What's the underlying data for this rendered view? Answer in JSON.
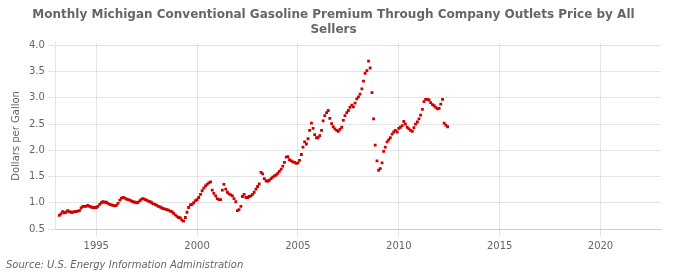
{
  "chart_data": {
    "type": "scatter",
    "title": "Monthly Michigan Conventional Gasoline Premium Through Company Outlets Price by All\nSellers",
    "ylabel": "Dollars per Gallon",
    "annotation": "Source: U.S. Energy Information Administration",
    "color": "#cc0000",
    "marker": "square",
    "grid": true,
    "xlim": [
      1993.0,
      2023.0
    ],
    "ylim": [
      0.5,
      4.05
    ],
    "xticks": [
      1995,
      2000,
      2005,
      2010,
      2015,
      2020
    ],
    "yticks": [
      0.5,
      {
        "value": 1.0,
        "label": "1.0"
      },
      1.5,
      {
        "value": 2.0,
        "label": "2.0"
      },
      2.5,
      {
        "value": 3.0,
        "label": "3.0"
      },
      3.5,
      {
        "value": 4.0,
        "label": "4.0"
      }
    ],
    "x": [
      1993.17,
      1993.25,
      1993.33,
      1993.42,
      1993.5,
      1993.58,
      1993.67,
      1993.75,
      1993.83,
      1993.92,
      1994.0,
      1994.08,
      1994.17,
      1994.25,
      1994.33,
      1994.42,
      1994.5,
      1994.58,
      1994.67,
      1994.75,
      1994.83,
      1994.92,
      1995.0,
      1995.08,
      1995.17,
      1995.25,
      1995.33,
      1995.42,
      1995.5,
      1995.58,
      1995.67,
      1995.75,
      1995.83,
      1995.92,
      1996.0,
      1996.08,
      1996.17,
      1996.25,
      1996.33,
      1996.42,
      1996.5,
      1996.58,
      1996.67,
      1996.75,
      1996.83,
      1996.92,
      1997.0,
      1997.08,
      1997.17,
      1997.25,
      1997.33,
      1997.42,
      1997.5,
      1997.58,
      1997.67,
      1997.75,
      1997.83,
      1997.92,
      1998.0,
      1998.08,
      1998.17,
      1998.25,
      1998.33,
      1998.42,
      1998.5,
      1998.58,
      1998.67,
      1998.75,
      1998.83,
      1998.92,
      1999.0,
      1999.08,
      1999.17,
      1999.25,
      1999.33,
      1999.42,
      1999.5,
      1999.58,
      1999.67,
      1999.75,
      1999.83,
      1999.92,
      2000.0,
      2000.08,
      2000.17,
      2000.25,
      2000.33,
      2000.42,
      2000.5,
      2000.58,
      2000.67,
      2000.75,
      2000.83,
      2000.92,
      2001.0,
      2001.08,
      2001.17,
      2001.25,
      2001.33,
      2001.42,
      2001.5,
      2001.58,
      2001.67,
      2001.75,
      2001.83,
      2001.92,
      2002.0,
      2002.08,
      2002.17,
      2002.25,
      2002.33,
      2002.42,
      2002.5,
      2002.58,
      2002.67,
      2002.75,
      2002.83,
      2002.92,
      2003.0,
      2003.08,
      2003.17,
      2003.25,
      2003.33,
      2003.42,
      2003.5,
      2003.58,
      2003.67,
      2003.75,
      2003.83,
      2003.92,
      2004.0,
      2004.08,
      2004.17,
      2004.25,
      2004.33,
      2004.42,
      2004.5,
      2004.58,
      2004.67,
      2004.75,
      2004.83,
      2004.92,
      2005.0,
      2005.08,
      2005.17,
      2005.25,
      2005.33,
      2005.42,
      2005.5,
      2005.58,
      2005.67,
      2005.75,
      2005.83,
      2005.92,
      2006.0,
      2006.08,
      2006.17,
      2006.25,
      2006.33,
      2006.42,
      2006.5,
      2006.58,
      2006.67,
      2006.75,
      2006.83,
      2006.92,
      2007.0,
      2007.08,
      2007.17,
      2007.25,
      2007.33,
      2007.42,
      2007.5,
      2007.58,
      2007.67,
      2007.75,
      2007.83,
      2007.92,
      2008.0,
      2008.08,
      2008.17,
      2008.25,
      2008.33,
      2008.42,
      2008.5,
      2008.58,
      2008.67,
      2008.75,
      2008.83,
      2008.92,
      2009.0,
      2009.08,
      2009.17,
      2009.25,
      2009.33,
      2009.42,
      2009.5,
      2009.58,
      2009.67,
      2009.75,
      2009.83,
      2009.92,
      2010.0,
      2010.08,
      2010.17,
      2010.25,
      2010.33,
      2010.42,
      2010.5,
      2010.58,
      2010.67,
      2010.75,
      2010.83,
      2010.92,
      2011.0,
      2011.08,
      2011.17,
      2011.25,
      2011.33,
      2011.42,
      2011.5,
      2011.58,
      2011.67,
      2011.75,
      2011.83,
      2011.92,
      2012.0,
      2012.08,
      2012.17,
      2012.25,
      2012.33,
      2012.42
    ],
    "values": [
      0.76,
      0.79,
      0.83,
      0.81,
      0.82,
      0.85,
      0.83,
      0.82,
      0.82,
      0.83,
      0.83,
      0.84,
      0.85,
      0.9,
      0.93,
      0.93,
      0.93,
      0.95,
      0.93,
      0.92,
      0.91,
      0.91,
      0.91,
      0.93,
      0.97,
      1.0,
      1.02,
      1.01,
      1.01,
      0.99,
      0.97,
      0.96,
      0.95,
      0.94,
      0.95,
      0.99,
      1.05,
      1.09,
      1.1,
      1.09,
      1.07,
      1.06,
      1.05,
      1.03,
      1.02,
      1.01,
      1.0,
      1.01,
      1.04,
      1.07,
      1.08,
      1.06,
      1.05,
      1.03,
      1.02,
      1.0,
      0.98,
      0.97,
      0.95,
      0.93,
      0.92,
      0.9,
      0.89,
      0.88,
      0.87,
      0.86,
      0.84,
      0.83,
      0.8,
      0.77,
      0.74,
      0.72,
      0.71,
      0.67,
      0.65,
      0.72,
      0.82,
      0.91,
      0.96,
      0.97,
      1.0,
      1.04,
      1.06,
      1.1,
      1.16,
      1.23,
      1.28,
      1.32,
      1.35,
      1.38,
      1.4,
      1.24,
      1.18,
      1.13,
      1.08,
      1.06,
      1.06,
      1.24,
      1.35,
      1.26,
      1.2,
      1.17,
      1.15,
      1.13,
      1.08,
      1.02,
      0.85,
      0.87,
      0.93,
      1.12,
      1.16,
      1.1,
      1.1,
      1.12,
      1.13,
      1.16,
      1.2,
      1.26,
      1.31,
      1.36,
      1.58,
      1.55,
      1.46,
      1.42,
      1.41,
      1.43,
      1.46,
      1.49,
      1.51,
      1.53,
      1.56,
      1.6,
      1.64,
      1.7,
      1.77,
      1.87,
      1.88,
      1.82,
      1.8,
      1.78,
      1.77,
      1.75,
      1.76,
      1.81,
      1.92,
      2.06,
      2.16,
      2.12,
      2.22,
      2.38,
      2.52,
      2.42,
      2.3,
      2.24,
      2.24,
      2.28,
      2.38,
      2.56,
      2.66,
      2.72,
      2.76,
      2.61,
      2.51,
      2.45,
      2.41,
      2.38,
      2.36,
      2.4,
      2.44,
      2.57,
      2.66,
      2.72,
      2.76,
      2.82,
      2.86,
      2.83,
      2.9,
      2.98,
      3.02,
      3.07,
      3.17,
      3.32,
      3.47,
      3.52,
      3.7,
      3.57,
      3.1,
      2.6,
      2.1,
      1.8,
      1.62,
      1.65,
      1.76,
      1.98,
      2.06,
      2.16,
      2.2,
      2.24,
      2.31,
      2.35,
      2.38,
      2.35,
      2.42,
      2.44,
      2.47,
      2.55,
      2.5,
      2.44,
      2.41,
      2.38,
      2.36,
      2.43,
      2.5,
      2.54,
      2.6,
      2.67,
      2.78,
      2.93,
      2.97,
      2.97,
      2.96,
      2.91,
      2.87,
      2.85,
      2.82,
      2.79,
      2.8,
      2.88,
      2.97,
      2.52,
      2.48,
      2.45
    ]
  }
}
